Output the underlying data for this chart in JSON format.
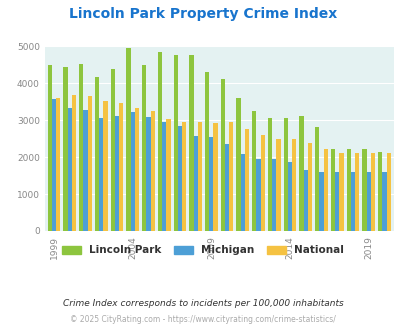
{
  "title": "Lincoln Park Property Crime Index",
  "title_color": "#1874CD",
  "subtitle": "Crime Index corresponds to incidents per 100,000 inhabitants",
  "footer": "© 2025 CityRating.com - https://www.cityrating.com/crime-statistics/",
  "years": [
    1999,
    2000,
    2001,
    2002,
    2003,
    2004,
    2005,
    2006,
    2007,
    2008,
    2009,
    2010,
    2011,
    2012,
    2013,
    2014,
    2015,
    2016,
    2017,
    2018,
    2019,
    2020
  ],
  "lincoln_park": [
    4490,
    4440,
    4510,
    4170,
    4380,
    4960,
    4490,
    4840,
    4760,
    4760,
    4290,
    4110,
    3600,
    3240,
    3050,
    3050,
    3100,
    2820,
    2230,
    2210,
    2230,
    2130
  ],
  "michigan": [
    3570,
    3340,
    3280,
    3060,
    3100,
    3220,
    3090,
    2950,
    2830,
    2570,
    2550,
    2350,
    2090,
    1950,
    1940,
    1860,
    1650,
    1590,
    1590,
    1600,
    1600,
    1600
  ],
  "national": [
    3600,
    3670,
    3640,
    3510,
    3460,
    3340,
    3250,
    3040,
    2950,
    2950,
    2920,
    2940,
    2750,
    2610,
    2490,
    2490,
    2380,
    2210,
    2120,
    2110,
    2110,
    2110
  ],
  "lp_color": "#8DC53E",
  "mi_color": "#4D9FD6",
  "nat_color": "#F5C242",
  "bg_color": "#E4F2F2",
  "ylim": [
    0,
    5000
  ],
  "yticks": [
    0,
    1000,
    2000,
    3000,
    4000,
    5000
  ],
  "xtick_years": [
    1999,
    2004,
    2009,
    2014,
    2019
  ],
  "bar_width": 0.27,
  "figsize": [
    4.06,
    3.3
  ],
  "dpi": 100
}
